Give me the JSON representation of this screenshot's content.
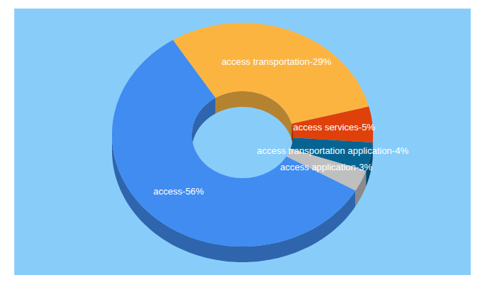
{
  "chart_data": {
    "type": "pie",
    "categories": [
      "access-56%",
      "access transportation-29%",
      "access services-5%",
      "access transportation application-4%",
      "access application-3%"
    ],
    "values": [
      56,
      29,
      5,
      4,
      3
    ],
    "colors": [
      "#418cf0",
      "#fcb441",
      "#e0400a",
      "#056492",
      "#bfbfbf"
    ],
    "data_labels": true
  }
}
